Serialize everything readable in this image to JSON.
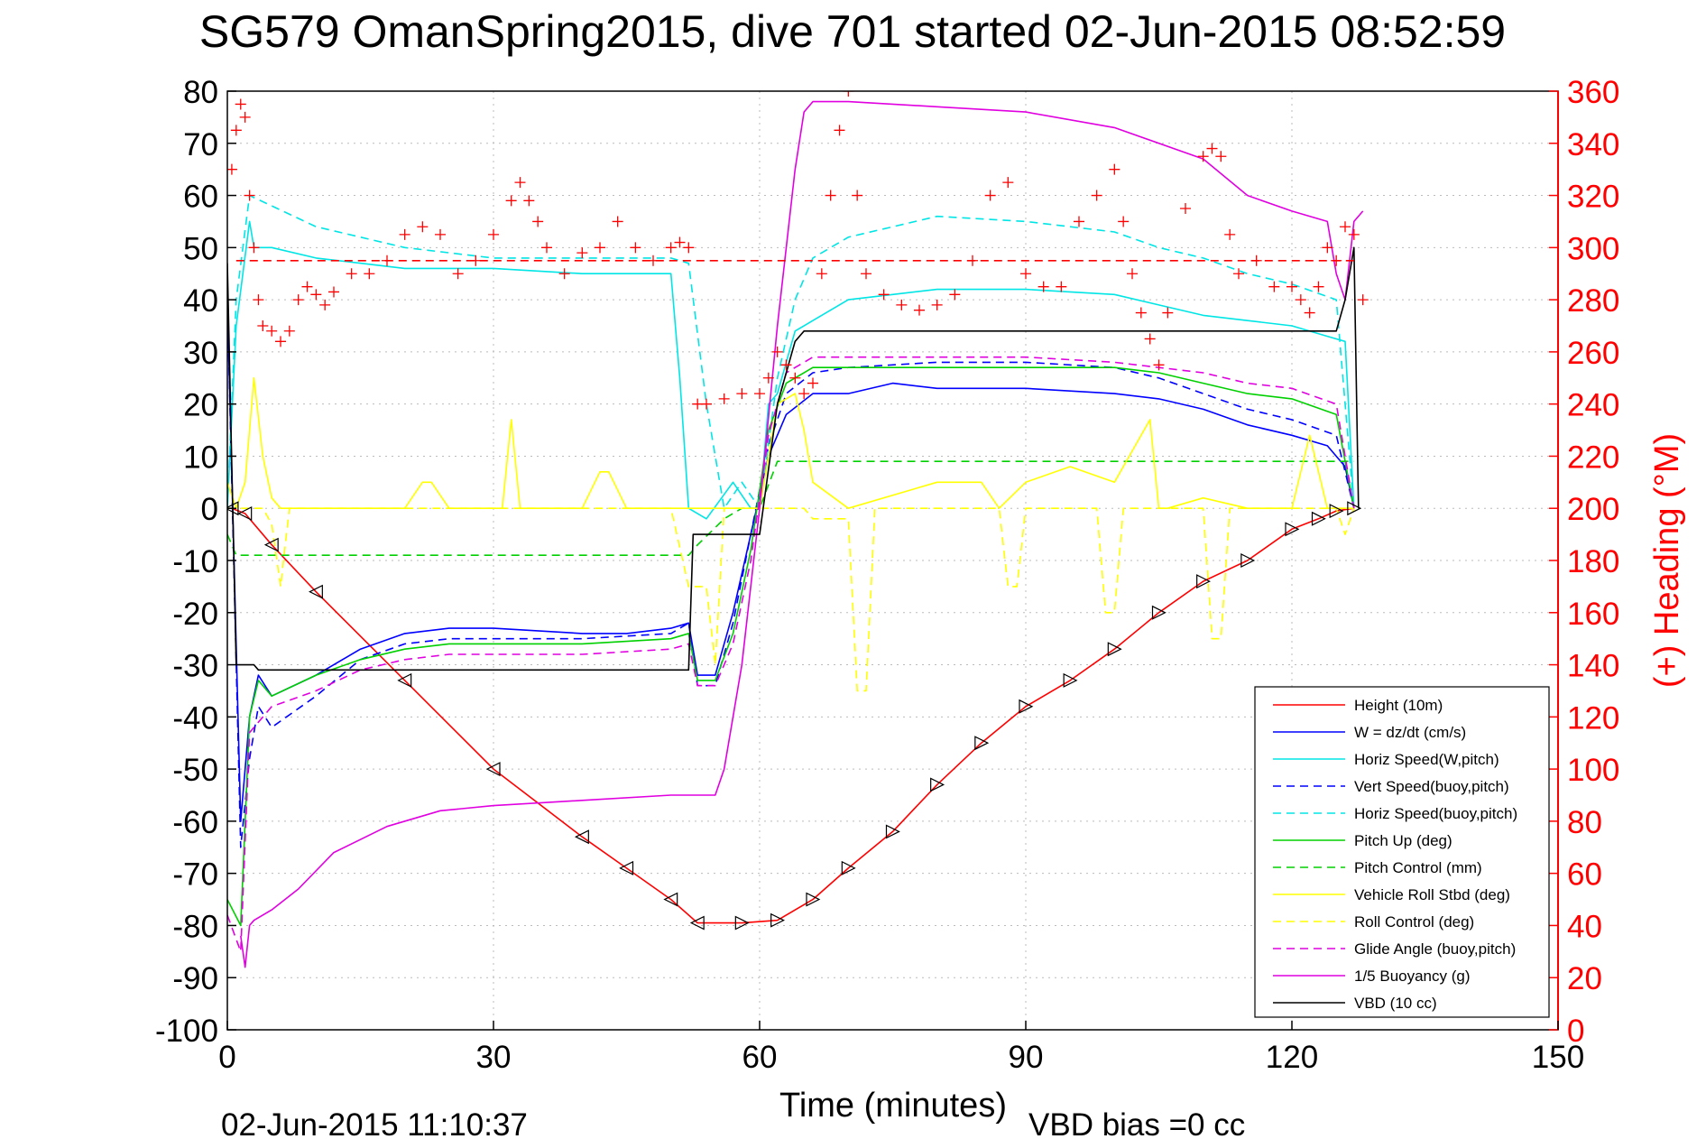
{
  "chart_data": {
    "type": "line",
    "title": "SG579 OmanSpring2015, dive 701 started 02-Jun-2015 08:52:59",
    "xlabel": "Time (minutes)",
    "ylabel_right": "(+) Heading (°M)",
    "footer_left": "02-Jun-2015 11:10:37",
    "footer_right": "VBD bias =0 cc",
    "xlim": [
      0,
      150
    ],
    "ylim": [
      -100,
      80
    ],
    "y2lim": [
      0,
      360
    ],
    "xticks": [
      0,
      30,
      60,
      90,
      120,
      150
    ],
    "yticks": [
      80,
      70,
      60,
      50,
      40,
      30,
      20,
      10,
      0,
      -10,
      -20,
      -30,
      -40,
      -50,
      -60,
      -70,
      -80,
      -90,
      -100
    ],
    "y2ticks": [
      360,
      340,
      320,
      300,
      280,
      260,
      240,
      220,
      200,
      180,
      160,
      140,
      120,
      100,
      80,
      60,
      40,
      20,
      0
    ],
    "grid": true,
    "legend_position": "bottom-right",
    "colors": {
      "red": "#ff0000",
      "blue": "#0000ff",
      "cyan": "#00e5e5",
      "green": "#00d000",
      "yellow": "#ffff00",
      "magenta": "#e000e0",
      "black": "#000000",
      "axis_right": "#ff0000"
    },
    "series": [
      {
        "name": "Height (10m)",
        "color": "#ff0000",
        "dash": false,
        "x": [
          0.5,
          2,
          5,
          10,
          20,
          30,
          40,
          45,
          50,
          53,
          58,
          62,
          66,
          70,
          75,
          80,
          85,
          90,
          95,
          100,
          105,
          110,
          115,
          120,
          123,
          125,
          127
        ],
        "y": [
          0,
          -1,
          -7,
          -16,
          -33,
          -50,
          -63,
          -69,
          -75,
          -79.5,
          -79.5,
          -79,
          -75,
          -69,
          -62,
          -53,
          -45,
          -38,
          -33,
          -27,
          -20,
          -14,
          -10,
          -4,
          -2,
          -0.5,
          0
        ]
      },
      {
        "name": "W = dz/dt (cm/s)",
        "color": "#0000ff",
        "dash": false,
        "x": [
          0,
          1.5,
          2.5,
          3.5,
          5,
          10,
          15,
          20,
          25,
          30,
          40,
          45,
          50,
          52,
          53,
          55,
          57,
          59,
          61,
          63,
          66,
          70,
          75,
          80,
          90,
          100,
          105,
          110,
          115,
          120,
          124,
          126,
          127
        ],
        "y": [
          40,
          -60,
          -40,
          -32,
          -36,
          -32,
          -27,
          -24,
          -23,
          -23,
          -24,
          -24,
          -23,
          -22,
          -32,
          -32,
          -20,
          -5,
          10,
          18,
          22,
          22,
          24,
          23,
          23,
          22,
          21,
          19,
          16,
          14,
          12,
          8,
          0
        ]
      },
      {
        "name": "Horiz Speed(W,pitch)",
        "color": "#00e5e5",
        "dash": false,
        "x": [
          0,
          1,
          2.5,
          3,
          5,
          10,
          20,
          30,
          40,
          50,
          51,
          52,
          54,
          57,
          59,
          60,
          61,
          62,
          64,
          66,
          70,
          75,
          80,
          90,
          100,
          105,
          110,
          115,
          120,
          124,
          126,
          127
        ],
        "y": [
          0,
          35,
          55,
          50,
          50,
          48,
          46,
          46,
          45,
          45,
          25,
          0,
          -2,
          5,
          0,
          0,
          20,
          22,
          34,
          36,
          40,
          41,
          42,
          42,
          41,
          39,
          37,
          36,
          35,
          33,
          32,
          0
        ]
      },
      {
        "name": "Vert Speed(buoy,pitch)",
        "color": "#0000ff",
        "dash": true,
        "x": [
          0,
          1.5,
          2.5,
          3.5,
          5,
          10,
          15,
          20,
          25,
          30,
          40,
          50,
          52,
          53,
          55,
          57,
          59,
          61,
          63,
          66,
          70,
          80,
          90,
          100,
          105,
          110,
          115,
          120,
          125,
          127
        ],
        "y": [
          40,
          -65,
          -48,
          -38,
          -42,
          -36,
          -29,
          -26,
          -25,
          -25,
          -25,
          -24,
          -22,
          -34,
          -34,
          -22,
          -5,
          12,
          22,
          26,
          27,
          28,
          28,
          27,
          25,
          22,
          19,
          17,
          14,
          0
        ]
      },
      {
        "name": "Horiz Speed(buoy,pitch)",
        "color": "#00e5e5",
        "dash": true,
        "x": [
          0,
          1,
          2.5,
          5,
          10,
          20,
          30,
          40,
          50,
          52,
          54,
          56,
          58,
          60,
          62,
          64,
          66,
          70,
          80,
          90,
          100,
          105,
          110,
          115,
          120,
          125,
          127
        ],
        "y": [
          0,
          40,
          60,
          58,
          54,
          50,
          48,
          48,
          48,
          47,
          20,
          0,
          5,
          0,
          25,
          40,
          48,
          52,
          56,
          55,
          53,
          50,
          48,
          45,
          43,
          40,
          0
        ]
      },
      {
        "name": "Pitch Up (deg)",
        "color": "#00d000",
        "dash": false,
        "x": [
          0,
          1.5,
          2.5,
          3.5,
          5,
          10,
          15,
          20,
          25,
          30,
          40,
          50,
          52,
          53,
          55,
          57,
          59,
          61,
          63,
          66,
          70,
          80,
          90,
          100,
          105,
          110,
          115,
          120,
          125,
          127
        ],
        "y": [
          -75,
          -80,
          -40,
          -33,
          -36,
          -32,
          -29,
          -27,
          -26,
          -26,
          -26,
          -25,
          -24,
          -33,
          -33,
          -24,
          -8,
          15,
          24,
          27,
          27,
          27,
          27,
          27,
          26,
          24,
          22,
          21,
          18,
          0
        ]
      },
      {
        "name": "Pitch Control (mm)",
        "color": "#00d000",
        "dash": true,
        "x": [
          0,
          1,
          2,
          5,
          10,
          20,
          30,
          40,
          50,
          52,
          53,
          56,
          58,
          60,
          62,
          64,
          66,
          70,
          80,
          90,
          100,
          110,
          120,
          127
        ],
        "y": [
          -5,
          -9,
          -9,
          -9,
          -9,
          -9,
          -9,
          -9,
          -9,
          -9,
          -7,
          -2,
          0,
          0,
          9,
          9,
          9,
          9,
          9,
          9,
          9,
          9,
          9,
          9
        ]
      },
      {
        "name": "Vehicle Roll Stbd (deg)",
        "color": "#ffff00",
        "dash": false,
        "x": [
          0,
          1,
          2,
          3,
          4,
          5,
          6,
          10,
          20,
          22,
          23,
          25,
          30,
          31,
          32,
          33,
          40,
          42,
          43,
          45,
          50,
          55,
          60,
          62,
          64,
          65,
          66,
          70,
          80,
          85,
          87,
          90,
          95,
          100,
          104,
          105,
          106,
          110,
          115,
          120,
          122,
          124,
          126,
          127
        ],
        "y": [
          5,
          0,
          5,
          25,
          10,
          2,
          0,
          0,
          0,
          5,
          5,
          0,
          0,
          0,
          17,
          0,
          0,
          7,
          7,
          0,
          0,
          0,
          0,
          20,
          22,
          15,
          5,
          0,
          5,
          5,
          0,
          5,
          8,
          5,
          17,
          0,
          0,
          2,
          0,
          0,
          14,
          0,
          0,
          0
        ]
      },
      {
        "name": "Roll Control (deg)",
        "color": "#ffff00",
        "dash": true,
        "x": [
          0,
          2,
          4,
          5,
          6,
          7,
          20,
          30,
          40,
          50,
          52,
          54,
          55,
          56,
          58,
          60,
          65,
          66,
          70,
          71,
          72,
          73,
          80,
          87,
          88,
          89,
          90,
          98,
          99,
          100,
          101,
          104,
          105,
          106,
          110,
          111,
          112,
          113,
          120,
          125,
          126,
          127
        ],
        "y": [
          0,
          0,
          0,
          -3,
          -15,
          0,
          0,
          0,
          0,
          0,
          -15,
          -15,
          -30,
          0,
          0,
          0,
          0,
          -2,
          -2,
          -35,
          -35,
          0,
          0,
          0,
          -15,
          -15,
          0,
          0,
          -20,
          -20,
          0,
          0,
          0,
          0,
          0,
          -25,
          -25,
          0,
          0,
          0,
          -5,
          0
        ]
      },
      {
        "name": "Glide Angle (buoy,pitch)",
        "color": "#e000e0",
        "dash": true,
        "x": [
          0,
          1.5,
          2.5,
          5,
          10,
          15,
          20,
          25,
          30,
          40,
          50,
          52,
          53,
          55,
          57,
          59,
          61,
          63,
          66,
          70,
          80,
          90,
          100,
          105,
          110,
          115,
          120,
          125,
          127
        ],
        "y": [
          -78,
          -85,
          -43,
          -38,
          -35,
          -31,
          -29,
          -28,
          -28,
          -28,
          -27,
          -26,
          -34,
          -34,
          -26,
          -10,
          14,
          26,
          29,
          29,
          29,
          29,
          28,
          27,
          26,
          24,
          23,
          20,
          0
        ]
      },
      {
        "name": "1/5 Buoyancy (g)",
        "color": "#e000e0",
        "dash": false,
        "x": [
          1.5,
          2,
          2.5,
          3,
          5,
          8,
          12,
          18,
          24,
          30,
          40,
          50,
          55,
          56,
          58,
          60,
          62,
          64,
          65,
          66,
          70,
          80,
          90,
          100,
          110,
          115,
          120,
          124,
          125,
          126,
          127,
          128
        ],
        "y": [
          -82,
          -88,
          -80,
          -79,
          -77,
          -73,
          -66,
          -61,
          -58,
          -57,
          -56,
          -55,
          -55,
          -50,
          -30,
          0,
          35,
          65,
          76,
          78,
          78,
          77,
          76,
          73,
          67,
          60,
          57,
          55,
          45,
          40,
          55,
          57
        ]
      },
      {
        "name": "VBD (10 cc)",
        "color": "#000000",
        "dash": false,
        "x": [
          0,
          1,
          3,
          3.5,
          10,
          20,
          30,
          40,
          52,
          52.5,
          55,
          57,
          60,
          62,
          64,
          65,
          66,
          80,
          90,
          100,
          110,
          120,
          125,
          126,
          127,
          127.5
        ],
        "y": [
          47,
          -30,
          -30,
          -31,
          -31,
          -31,
          -31,
          -31,
          -31,
          -5,
          -5,
          -5,
          -5,
          20,
          32,
          34,
          34,
          34,
          34,
          34,
          34,
          34,
          34,
          40,
          50,
          0
        ]
      },
      {
        "name": "Heading",
        "axis": "right",
        "style": "plus",
        "color": "#ff0000",
        "x": [
          0.5,
          1,
          1.5,
          2,
          2.5,
          3,
          3.5,
          4,
          5,
          6,
          7,
          8,
          9,
          10,
          11,
          12,
          14,
          16,
          18,
          20,
          22,
          24,
          26,
          28,
          30,
          32,
          33,
          34,
          35,
          36,
          38,
          40,
          42,
          44,
          46,
          48,
          50,
          51,
          52,
          53,
          54,
          56,
          58,
          60,
          61,
          62,
          63,
          64,
          65,
          66,
          67,
          68,
          69,
          70,
          71,
          72,
          74,
          76,
          78,
          80,
          82,
          84,
          86,
          88,
          90,
          92,
          94,
          96,
          98,
          100,
          101,
          102,
          103,
          104,
          105,
          106,
          108,
          110,
          111,
          112,
          113,
          114,
          116,
          118,
          120,
          121,
          122,
          123,
          124,
          125,
          126,
          127,
          128
        ],
        "y": [
          330,
          345,
          355,
          350,
          320,
          300,
          280,
          270,
          268,
          264,
          268,
          280,
          285,
          282,
          278,
          283,
          290,
          290,
          295,
          305,
          308,
          305,
          290,
          295,
          305,
          318,
          325,
          318,
          310,
          300,
          290,
          298,
          300,
          310,
          300,
          295,
          300,
          302,
          300,
          240,
          240,
          242,
          244,
          244,
          250,
          260,
          255,
          250,
          244,
          248,
          290,
          320,
          345,
          360,
          320,
          290,
          282,
          278,
          276,
          278,
          282,
          295,
          320,
          325,
          290,
          285,
          285,
          310,
          320,
          330,
          310,
          290,
          275,
          265,
          255,
          275,
          315,
          335,
          338,
          335,
          305,
          290,
          295,
          285,
          285,
          280,
          275,
          285,
          300,
          295,
          308,
          305,
          280
        ]
      },
      {
        "name": "Heading mean",
        "axis": "right",
        "color": "#ff0000",
        "dash": true,
        "x": [
          1,
          127
        ],
        "y": [
          295,
          295
        ]
      }
    ]
  }
}
